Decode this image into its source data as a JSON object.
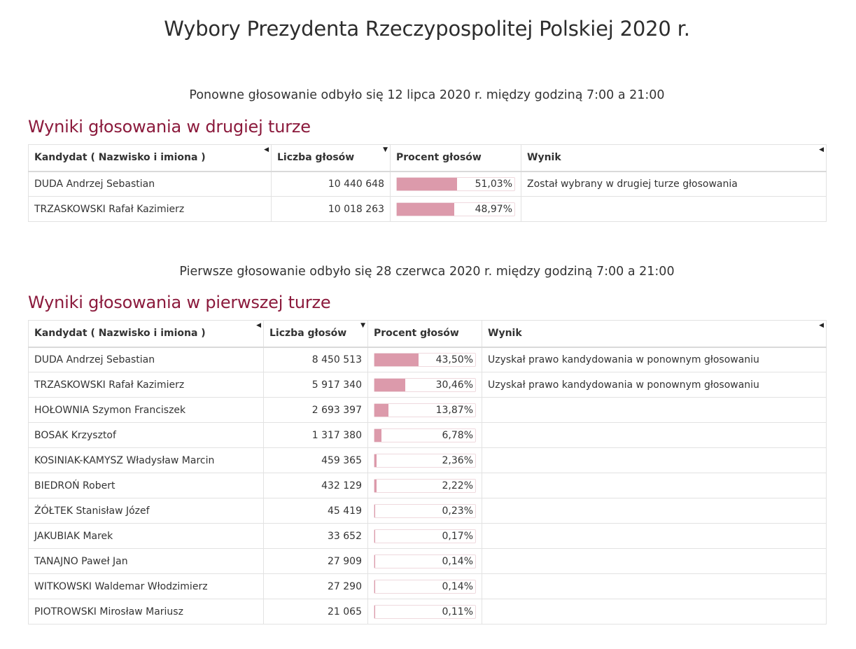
{
  "page": {
    "title": "Wybory Prezydenta Rzeczypospolitej Polskiej 2020 r."
  },
  "colors": {
    "accent": "#8b1a3c",
    "bar": "#dc9aab",
    "bar_border": "#efd9de"
  },
  "columns": {
    "candidate": "Kandydat ( Nazwisko i imiona )",
    "votes": "Liczba głosów",
    "percent": "Procent głosów",
    "result": "Wynik"
  },
  "second_round": {
    "info": "Ponowne głosowanie odbyło się 12 lipca 2020 r. między godziną 7:00 a 21:00",
    "heading": "Wyniki głosowania w drugiej turze",
    "rows": [
      {
        "name": "DUDA Andrzej Sebastian",
        "votes": "10 440 648",
        "percent": 51.03,
        "percent_label": "51,03%",
        "result": "Został wybrany w drugiej turze głosowania"
      },
      {
        "name": "TRZASKOWSKI Rafał Kazimierz",
        "votes": "10 018 263",
        "percent": 48.97,
        "percent_label": "48,97%",
        "result": ""
      }
    ]
  },
  "first_round": {
    "info": "Pierwsze głosowanie odbyło się 28 czerwca 2020 r. między godziną 7:00 a 21:00",
    "heading": "Wyniki głosowania w pierwszej turze",
    "rows": [
      {
        "name": "DUDA Andrzej Sebastian",
        "votes": "8 450 513",
        "percent": 43.5,
        "percent_label": "43,50%",
        "result": "Uzyskał prawo kandydowania w ponownym głosowaniu"
      },
      {
        "name": "TRZASKOWSKI Rafał Kazimierz",
        "votes": "5 917 340",
        "percent": 30.46,
        "percent_label": "30,46%",
        "result": "Uzyskał prawo kandydowania w ponownym głosowaniu"
      },
      {
        "name": "HOŁOWNIA Szymon Franciszek",
        "votes": "2 693 397",
        "percent": 13.87,
        "percent_label": "13,87%",
        "result": ""
      },
      {
        "name": "BOSAK Krzysztof",
        "votes": "1 317 380",
        "percent": 6.78,
        "percent_label": "6,78%",
        "result": ""
      },
      {
        "name": "KOSINIAK-KAMYSZ Władysław Marcin",
        "votes": "459 365",
        "percent": 2.36,
        "percent_label": "2,36%",
        "result": ""
      },
      {
        "name": "BIEDROŃ Robert",
        "votes": "432 129",
        "percent": 2.22,
        "percent_label": "2,22%",
        "result": ""
      },
      {
        "name": "ŻÓŁTEK Stanisław Józef",
        "votes": "45 419",
        "percent": 0.23,
        "percent_label": "0,23%",
        "result": ""
      },
      {
        "name": "JAKUBIAK Marek",
        "votes": "33 652",
        "percent": 0.17,
        "percent_label": "0,17%",
        "result": ""
      },
      {
        "name": "TANAJNO Paweł Jan",
        "votes": "27 909",
        "percent": 0.14,
        "percent_label": "0,14%",
        "result": ""
      },
      {
        "name": "WITKOWSKI Waldemar Włodzimierz",
        "votes": "27 290",
        "percent": 0.14,
        "percent_label": "0,14%",
        "result": ""
      },
      {
        "name": "PIOTROWSKI Mirosław Mariusz",
        "votes": "21 065",
        "percent": 0.11,
        "percent_label": "0,11%",
        "result": ""
      }
    ]
  }
}
